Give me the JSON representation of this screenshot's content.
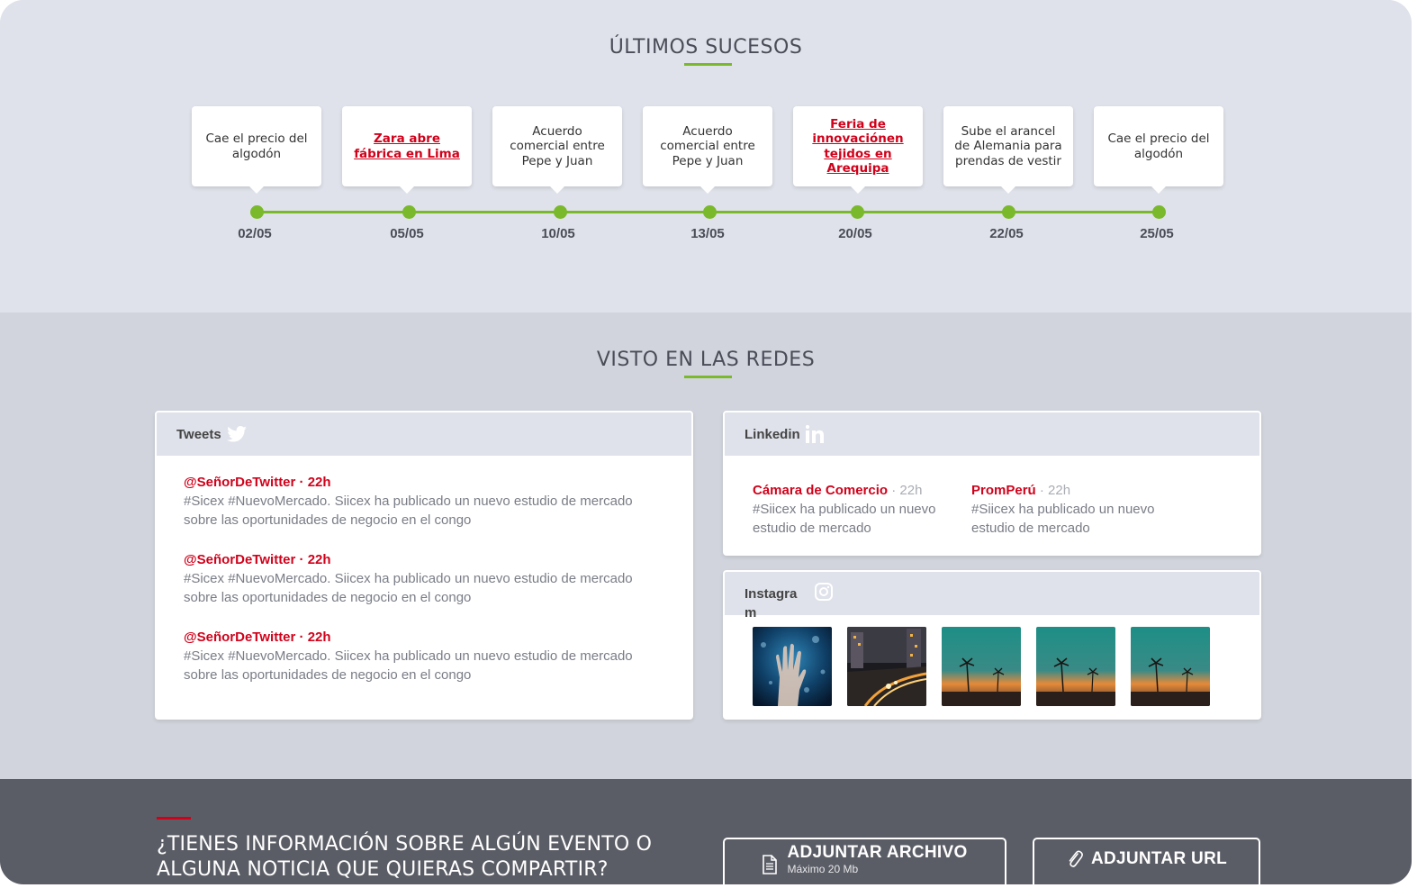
{
  "timeline": {
    "title": "ÚLTIMOS SUCESOS",
    "events": [
      {
        "date": "02/05",
        "text": "Cae el precio del algodón",
        "link": false
      },
      {
        "date": "05/05",
        "text": "Zara abre fábrica en Lima",
        "link": true
      },
      {
        "date": "10/05",
        "text": "Acuerdo comercial entre Pepe y Juan",
        "link": false
      },
      {
        "date": "13/05",
        "text": "Acuerdo comercial entre Pepe y Juan",
        "link": false
      },
      {
        "date": "20/05",
        "text": "Feria de innovaciónen tejidos en Arequipa",
        "link": true
      },
      {
        "date": "22/05",
        "text": "Sube el arancel de Alemania para prendas de vestir",
        "link": false
      },
      {
        "date": "25/05",
        "text": "Cae el precio del algodón",
        "link": false
      }
    ]
  },
  "social": {
    "title": "VISTO EN LAS REDES",
    "tweets": {
      "label": "Tweets",
      "icon": "twitter-icon",
      "items": [
        {
          "handle": "@SeñorDeTwitter · 22h",
          "text": "#Sicex #NuevoMercado. Siicex ha publicado un nuevo estudio de mercado sobre las oportunidades de negocio en el congo"
        },
        {
          "handle": "@SeñorDeTwitter · 22h",
          "text": "#Sicex #NuevoMercado. Siicex ha publicado un nuevo estudio de mercado sobre las oportunidades de negocio en el congo"
        },
        {
          "handle": "@SeñorDeTwitter · 22h",
          "text": "#Sicex #NuevoMercado. Siicex ha publicado un nuevo estudio de mercado sobre las oportunidades de negocio en el congo"
        }
      ]
    },
    "linkedin": {
      "label": "Linkedin",
      "icon": "linkedin-icon",
      "items": [
        {
          "author": "Cámara de Comercio",
          "time": " · 22h",
          "text": "#Siicex ha publicado un nuevo estudio de mercado"
        },
        {
          "author": "PromPerú",
          "time": " · 22h",
          "text": "#Siicex ha publicado un nuevo estudio de mercado"
        }
      ]
    },
    "instagram": {
      "label": "Instagra m",
      "icon": "instagram-icon",
      "photos": [
        "hand-in-water-photo",
        "city-night-road-photo",
        "palm-sunset-photo",
        "palm-sunset-photo",
        "palm-sunset-photo"
      ]
    }
  },
  "cta": {
    "question": "¿TIENES INFORMACIÓN SOBRE ALGÚN EVENTO O ALGUNA NOTICIA QUE QUIERAS COMPARTIR?",
    "attach_file": {
      "label": "ADJUNTAR ARCHIVO",
      "sub": "Máximo 20 Mb",
      "icon": "document-icon"
    },
    "attach_url": {
      "label": "ADJUNTAR URL",
      "icon": "paperclip-icon"
    }
  },
  "colors": {
    "accent_green": "#7ab92b",
    "accent_red": "#d0021b",
    "footer_bg": "#5b5d66"
  }
}
